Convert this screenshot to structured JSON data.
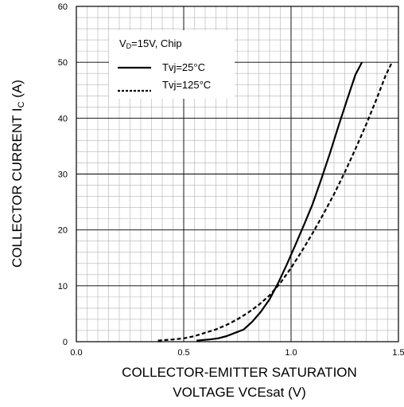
{
  "chart_data": {
    "type": "line",
    "xlabel_line1": "COLLECTOR-EMITTER SATURATION",
    "xlabel_line2": "VOLTAGE VCEsat (V)",
    "ylabel_main": "COLLECTOR CURRENT I",
    "ylabel_sub": "C",
    "ylabel_unit": " (A)",
    "xlim": [
      0.0,
      1.5
    ],
    "ylim": [
      0,
      60
    ],
    "x_ticks": [
      0.0,
      0.5,
      1.0,
      1.5
    ],
    "x_tick_labels": [
      "0.0",
      "0.5",
      "1.0",
      "1.5"
    ],
    "y_ticks": [
      0,
      10,
      20,
      30,
      40,
      50,
      60
    ],
    "y_tick_labels": [
      "0",
      "10",
      "20",
      "30",
      "40",
      "50",
      "60"
    ],
    "grid": true,
    "minor_x_step": 0.05,
    "minor_y_step": 2,
    "legend_position": "top-left",
    "legend_title_main": "V",
    "legend_title_sub": "D",
    "legend_title_rest": "=15V, Chip",
    "series": [
      {
        "name": "Tvj=25°C",
        "style": "solid",
        "x": [
          0.56,
          0.62,
          0.66,
          0.7,
          0.74,
          0.78,
          0.82,
          0.86,
          0.9,
          0.94,
          0.98,
          1.02,
          1.06,
          1.1,
          1.14,
          1.18,
          1.22,
          1.26,
          1.3,
          1.33
        ],
        "y": [
          0.2,
          0.4,
          0.6,
          1.0,
          1.6,
          2.2,
          3.6,
          5.4,
          7.6,
          10.5,
          13.8,
          17.3,
          20.9,
          24.6,
          29.0,
          33.6,
          38.5,
          43.2,
          47.8,
          50.0
        ]
      },
      {
        "name": "Tvj=125°C",
        "style": "dashed",
        "x": [
          0.38,
          0.45,
          0.5,
          0.55,
          0.6,
          0.65,
          0.7,
          0.75,
          0.8,
          0.85,
          0.9,
          0.95,
          1.0,
          1.05,
          1.1,
          1.15,
          1.2,
          1.25,
          1.3,
          1.35,
          1.4,
          1.44,
          1.47
        ],
        "y": [
          0.2,
          0.4,
          0.6,
          1.0,
          1.6,
          2.2,
          3.0,
          4.0,
          5.2,
          6.6,
          8.3,
          10.5,
          13.2,
          16.2,
          19.4,
          22.8,
          26.4,
          30.3,
          34.5,
          38.9,
          43.6,
          47.6,
          50.0
        ]
      }
    ]
  }
}
